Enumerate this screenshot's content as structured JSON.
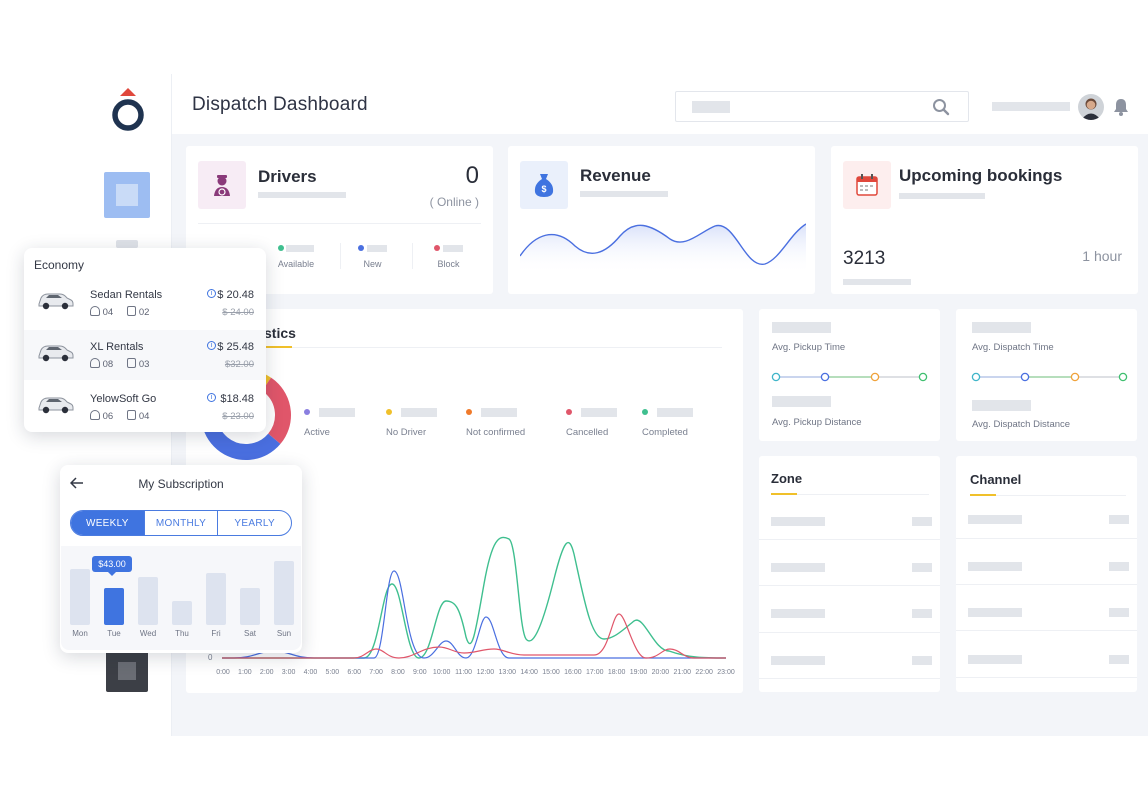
{
  "header": {
    "title": "Dispatch Dashboard"
  },
  "drivers": {
    "title": "Drivers",
    "count": "0",
    "status": "( Online )",
    "legend": [
      {
        "label": "Available",
        "color": "#3fbf8f"
      },
      {
        "label": "New",
        "color": "#4a6fe0"
      },
      {
        "label": "Block",
        "color": "#e0566a"
      }
    ]
  },
  "revenue": {
    "title": "Revenue"
  },
  "bookings": {
    "title": "Upcoming bookings",
    "count": "3213",
    "time": "1 hour"
  },
  "statistics": {
    "title_visible": "stics",
    "legend": [
      {
        "label": "Active",
        "color": "#8a7fe0"
      },
      {
        "label": "No Driver",
        "color": "#f0c02a"
      },
      {
        "label": "Not confirmed",
        "color": "#f07a2a"
      },
      {
        "label": "Cancelled",
        "color": "#e0566a"
      },
      {
        "label": "Completed",
        "color": "#3fbf8f"
      }
    ],
    "zero_label": "0",
    "x_ticks": [
      "0:00",
      "1:00",
      "2:00",
      "3:00",
      "4:00",
      "5:00",
      "6:00",
      "7:00",
      "8:00",
      "9:00",
      "10:00",
      "11:00",
      "12:00",
      "13:00",
      "14:00",
      "15:00",
      "16:00",
      "17:00",
      "18:00",
      "19:00",
      "20:00",
      "21:00",
      "22:00",
      "23:00"
    ]
  },
  "pickup": {
    "time_label": "Avg. Pickup Time",
    "distance_label": "Avg. Pickup Distance"
  },
  "dispatch": {
    "time_label": "Avg. Dispatch Time",
    "distance_label": "Avg. Dispatch Distance"
  },
  "zone": {
    "title": "Zone"
  },
  "channel": {
    "title": "Channel"
  },
  "economy": {
    "title": "Economy",
    "items": [
      {
        "name": "Sedan Rentals",
        "seats": "04",
        "bags": "02",
        "price": "$ 20.48",
        "old_price": "$ 24.00"
      },
      {
        "name": "XL Rentals",
        "seats": "08",
        "bags": "03",
        "price": "$ 25.48",
        "old_price": "$32.00"
      },
      {
        "name": "YelowSoft Go",
        "seats": "06",
        "bags": "04",
        "price": "$18.48",
        "old_price": "$ 23.00"
      }
    ]
  },
  "subscription": {
    "title": "My Subscription",
    "tabs": [
      "WEEKLY",
      "MONTHLY",
      "YEARLY"
    ],
    "active_tab": "WEEKLY",
    "tooltip": "$43.00",
    "days": [
      "Mon",
      "Tue",
      "Wed",
      "Thu",
      "Fri",
      "Sat",
      "Sun"
    ],
    "levels": [
      0.58,
      0.39,
      0.5,
      0.25,
      0.54,
      0.39,
      0.67
    ],
    "selected_day": "Tue"
  },
  "colors": {
    "accent": "#3f74e0",
    "underline": "#f0c02a"
  }
}
